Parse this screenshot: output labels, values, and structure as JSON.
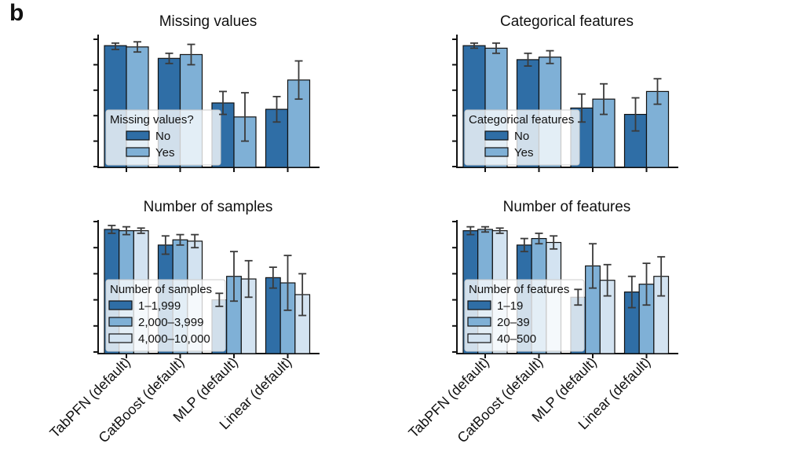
{
  "panel_label": "b",
  "colors": {
    "series": [
      "#2f6ea6",
      "#7fb0d6",
      "#d3e3f1"
    ],
    "bar_edge": "#111111",
    "error_bar": "#3a3a3a",
    "axis": "#111111"
  },
  "chart_data": [
    {
      "type": "bar",
      "title": "Missing values",
      "categories": [
        "TabPFN (default)",
        "CatBoost (default)",
        "MLP (default)",
        "Linear (default)"
      ],
      "show_xtick_labels": false,
      "ylim": [
        0,
        1
      ],
      "ytick_count": 6,
      "legend": {
        "title": "Missing values?",
        "position": "lower-left"
      },
      "series": [
        {
          "name": "No",
          "values": [
            0.95,
            0.85,
            0.5,
            0.45
          ],
          "err_low": [
            0.03,
            0.04,
            0.09,
            0.1
          ],
          "err_high": [
            0.02,
            0.04,
            0.09,
            0.1
          ]
        },
        {
          "name": "Yes",
          "values": [
            0.94,
            0.88,
            0.39,
            0.68
          ],
          "err_low": [
            0.04,
            0.08,
            0.19,
            0.15
          ],
          "err_high": [
            0.04,
            0.08,
            0.19,
            0.15
          ]
        }
      ]
    },
    {
      "type": "bar",
      "title": "Categorical features",
      "categories": [
        "TabPFN (default)",
        "CatBoost (default)",
        "MLP (default)",
        "Linear (default)"
      ],
      "show_xtick_labels": false,
      "ylim": [
        0,
        1
      ],
      "ytick_count": 6,
      "legend": {
        "title": "Categorical features",
        "position": "lower-left"
      },
      "series": [
        {
          "name": "No",
          "values": [
            0.95,
            0.84,
            0.46,
            0.41
          ],
          "err_low": [
            0.02,
            0.05,
            0.11,
            0.13
          ],
          "err_high": [
            0.02,
            0.05,
            0.11,
            0.13
          ]
        },
        {
          "name": "Yes",
          "values": [
            0.93,
            0.86,
            0.53,
            0.59
          ],
          "err_low": [
            0.04,
            0.05,
            0.12,
            0.1
          ],
          "err_high": [
            0.04,
            0.05,
            0.12,
            0.1
          ]
        }
      ]
    },
    {
      "type": "bar",
      "title": "Number of samples",
      "categories": [
        "TabPFN (default)",
        "CatBoost (default)",
        "MLP (default)",
        "Linear (default)"
      ],
      "show_xtick_labels": true,
      "ylim": [
        0,
        1
      ],
      "ytick_count": 6,
      "legend": {
        "title": "Number of samples",
        "position": "lower-left"
      },
      "series": [
        {
          "name": "1–1,999",
          "values": [
            0.94,
            0.82,
            0.4,
            0.57
          ],
          "err_low": [
            0.03,
            0.07,
            0.05,
            0.08
          ],
          "err_high": [
            0.03,
            0.07,
            0.05,
            0.08
          ]
        },
        {
          "name": "2,000–3,999",
          "values": [
            0.93,
            0.86,
            0.58,
            0.53
          ],
          "err_low": [
            0.03,
            0.04,
            0.19,
            0.21
          ],
          "err_high": [
            0.03,
            0.04,
            0.19,
            0.21
          ]
        },
        {
          "name": "4,000–10,000",
          "values": [
            0.93,
            0.85,
            0.56,
            0.44
          ],
          "err_low": [
            0.02,
            0.05,
            0.14,
            0.16
          ],
          "err_high": [
            0.02,
            0.05,
            0.14,
            0.16
          ]
        }
      ]
    },
    {
      "type": "bar",
      "title": "Number of features",
      "categories": [
        "TabPFN (default)",
        "CatBoost (default)",
        "MLP (default)",
        "Linear (default)"
      ],
      "show_xtick_labels": true,
      "ylim": [
        0,
        1
      ],
      "ytick_count": 6,
      "legend": {
        "title": "Number of features",
        "position": "lower-left"
      },
      "series": [
        {
          "name": "1–19",
          "values": [
            0.93,
            0.82,
            0.42,
            0.46
          ],
          "err_low": [
            0.03,
            0.05,
            0.06,
            0.12
          ],
          "err_high": [
            0.03,
            0.05,
            0.06,
            0.12
          ]
        },
        {
          "name": "20–39",
          "values": [
            0.94,
            0.87,
            0.66,
            0.52
          ],
          "err_low": [
            0.02,
            0.04,
            0.17,
            0.16
          ],
          "err_high": [
            0.02,
            0.04,
            0.17,
            0.16
          ]
        },
        {
          "name": "40–500",
          "values": [
            0.93,
            0.84,
            0.55,
            0.58
          ],
          "err_low": [
            0.02,
            0.05,
            0.12,
            0.15
          ],
          "err_high": [
            0.02,
            0.05,
            0.12,
            0.15
          ]
        }
      ]
    }
  ]
}
